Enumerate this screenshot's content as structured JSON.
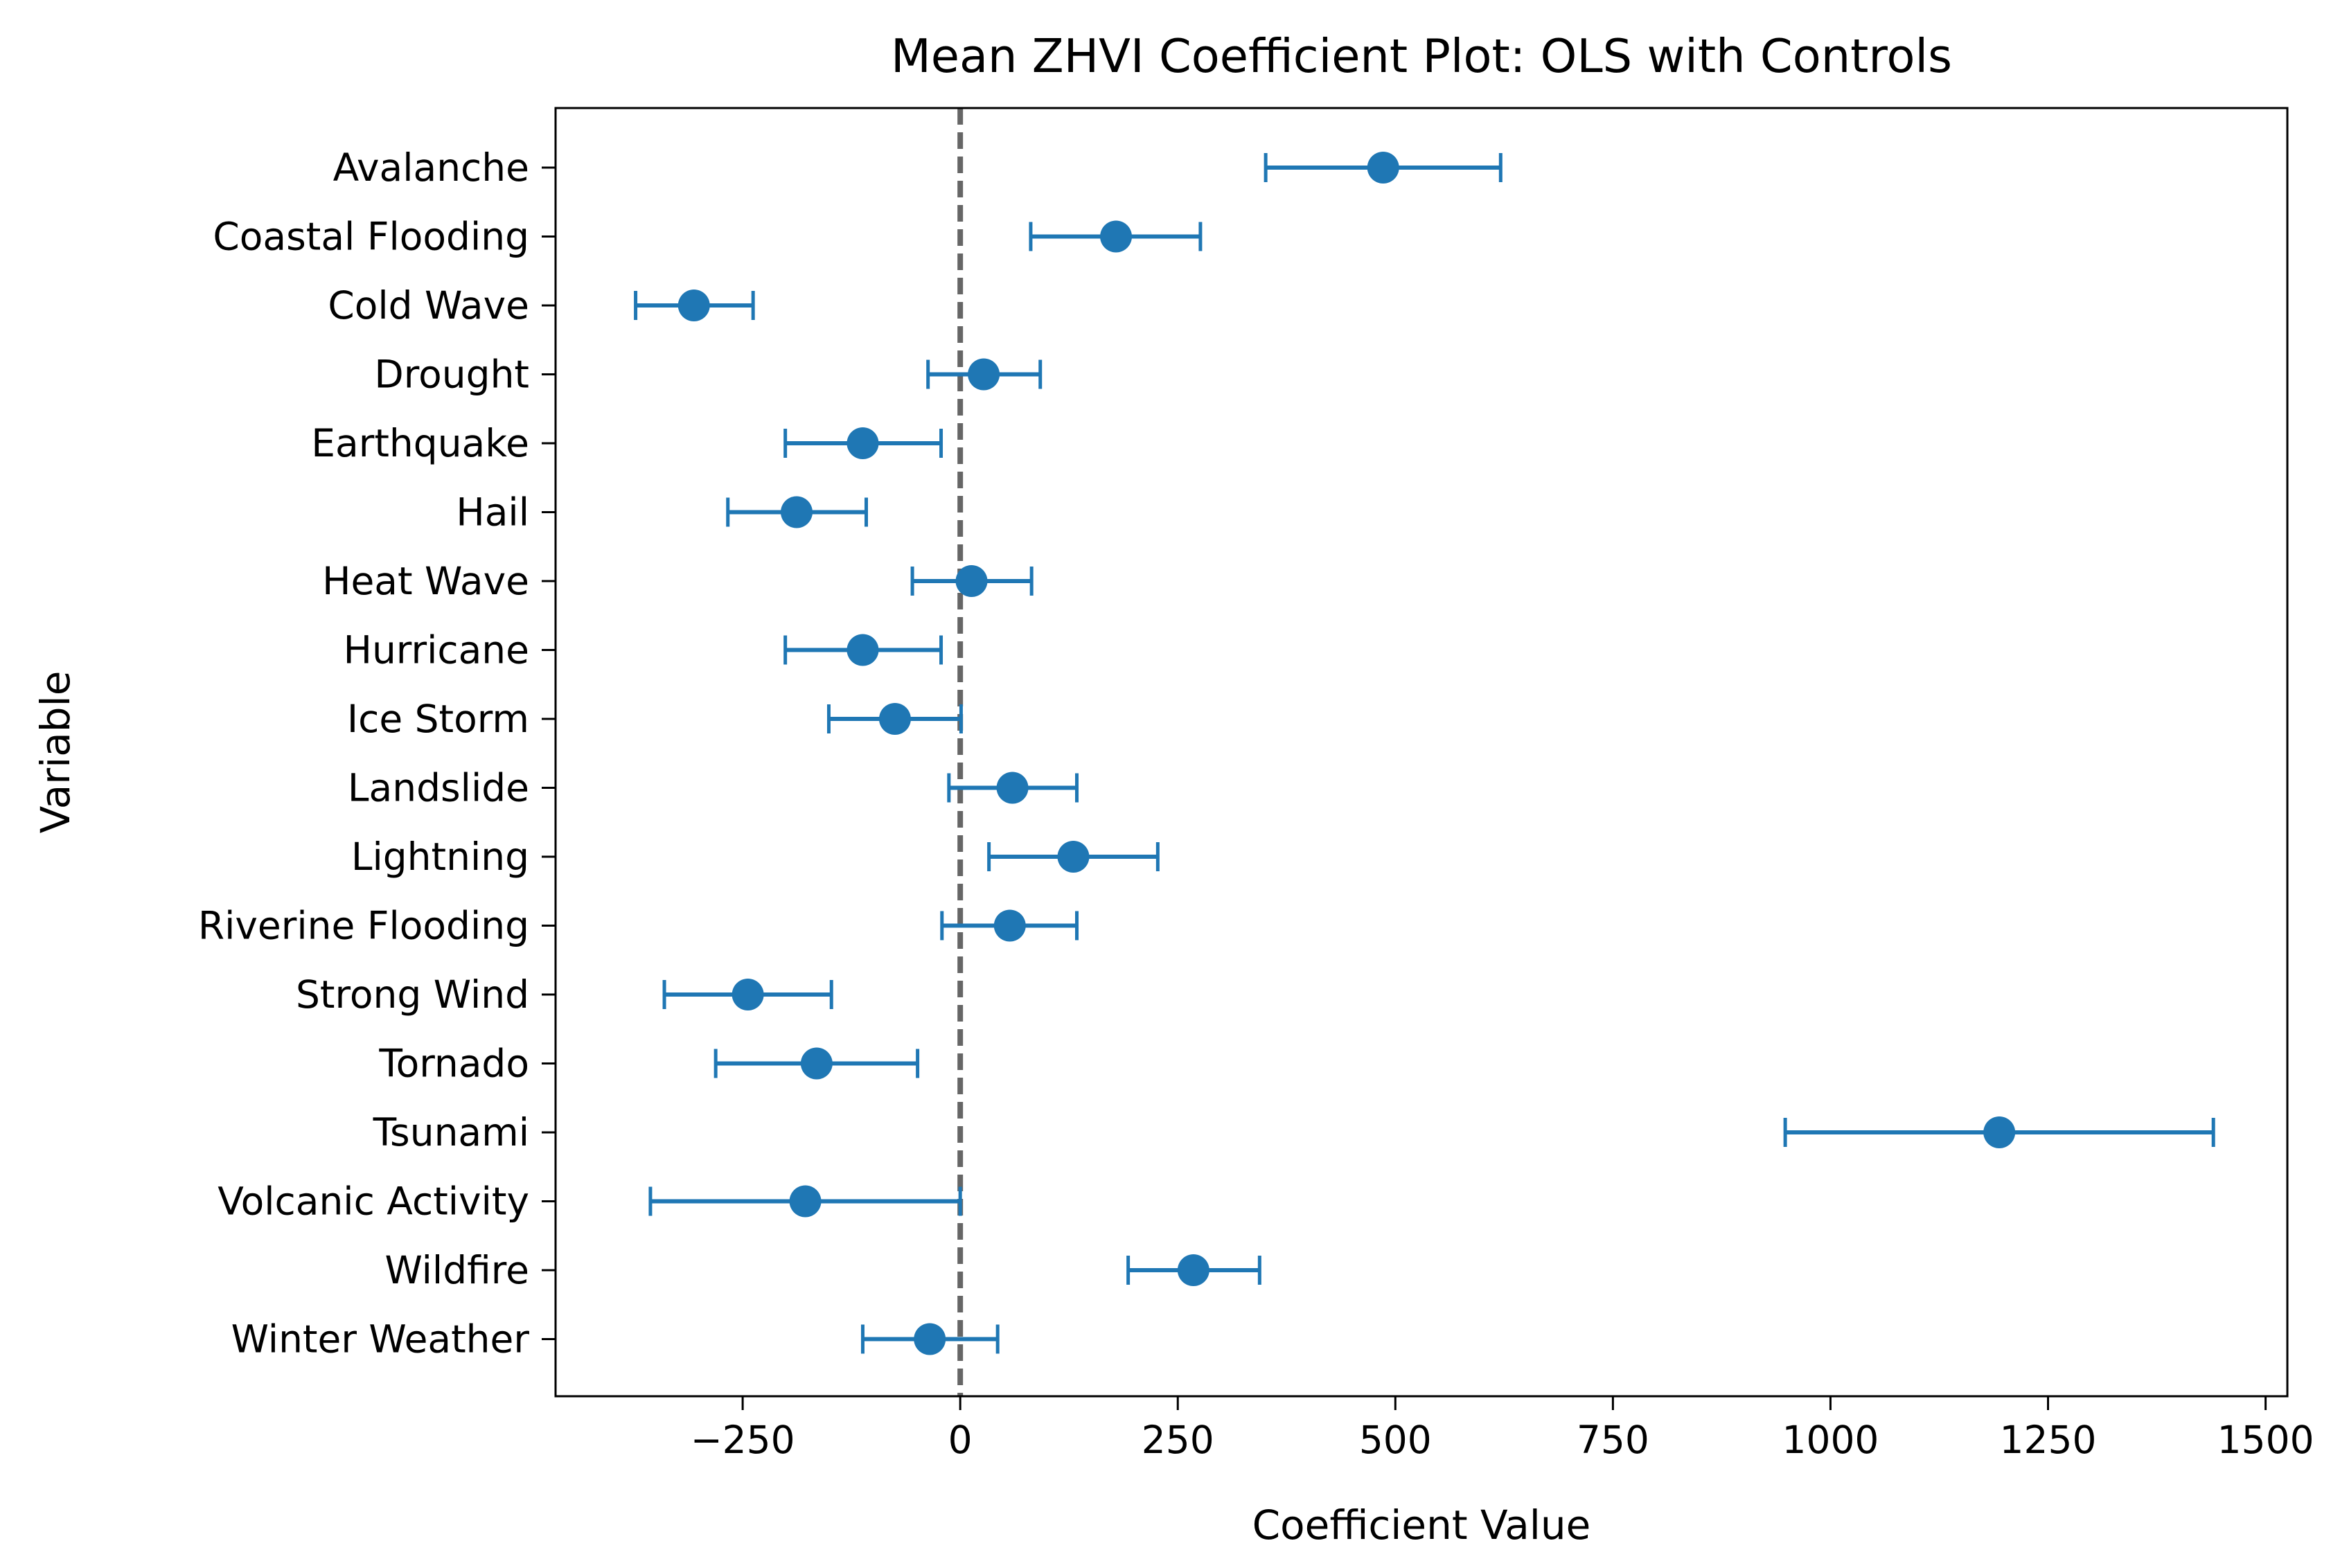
{
  "chart_data": {
    "type": "scatter",
    "title": "Mean ZHVI Coefficient Plot: OLS with Controls",
    "xlabel": "Coefficient Value",
    "ylabel": "Variable",
    "xlim": [
      -465,
      1525
    ],
    "xticks": [
      -250,
      0,
      250,
      500,
      750,
      1000,
      1250,
      1500
    ],
    "xtick_labels": [
      "−250",
      "0",
      "250",
      "500",
      "750",
      "1000",
      "1250",
      "1500"
    ],
    "reference_line": {
      "x": 0,
      "style": "dashed",
      "color": "#666666"
    },
    "marker_color": "#1f77b4",
    "grid": false,
    "legend": "none",
    "series": [
      {
        "points": [
          {
            "label": "Avalanche",
            "estimate": 486,
            "ci_low": 351,
            "ci_high": 621
          },
          {
            "label": "Coastal Flooding",
            "estimate": 179,
            "ci_low": 81,
            "ci_high": 276
          },
          {
            "label": "Cold Wave",
            "estimate": -306,
            "ci_low": -373,
            "ci_high": -238
          },
          {
            "label": "Drought",
            "estimate": 27,
            "ci_low": -37,
            "ci_high": 92
          },
          {
            "label": "Earthquake",
            "estimate": -112,
            "ci_low": -201,
            "ci_high": -22
          },
          {
            "label": "Hail",
            "estimate": -188,
            "ci_low": -267,
            "ci_high": -108
          },
          {
            "label": "Heat Wave",
            "estimate": 13,
            "ci_low": -55,
            "ci_high": 82
          },
          {
            "label": "Hurricane",
            "estimate": -112,
            "ci_low": -201,
            "ci_high": -22
          },
          {
            "label": "Ice Storm",
            "estimate": -75,
            "ci_low": -151,
            "ci_high": 1
          },
          {
            "label": "Landslide",
            "estimate": 60,
            "ci_low": -13,
            "ci_high": 134
          },
          {
            "label": "Lightning",
            "estimate": 130,
            "ci_low": 33,
            "ci_high": 227
          },
          {
            "label": "Riverine Flooding",
            "estimate": 57,
            "ci_low": -21,
            "ci_high": 134
          },
          {
            "label": "Strong Wind",
            "estimate": -244,
            "ci_low": -340,
            "ci_high": -148
          },
          {
            "label": "Tornado",
            "estimate": -165,
            "ci_low": -281,
            "ci_high": -49
          },
          {
            "label": "Tsunami",
            "estimate": 1194,
            "ci_low": 948,
            "ci_high": 1440
          },
          {
            "label": "Volcanic Activity",
            "estimate": -178,
            "ci_low": -356,
            "ci_high": 0
          },
          {
            "label": "Wildfire",
            "estimate": 268,
            "ci_low": 193,
            "ci_high": 344
          },
          {
            "label": "Winter Weather",
            "estimate": -35,
            "ci_low": -112,
            "ci_high": 43
          }
        ]
      }
    ]
  }
}
